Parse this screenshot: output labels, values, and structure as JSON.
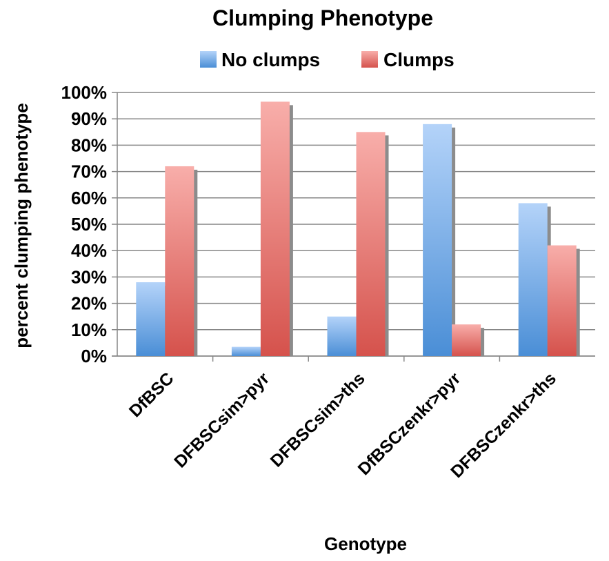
{
  "chart_data": {
    "type": "bar",
    "title": "Clumping Phenotype",
    "xlabel": "Genotype",
    "ylabel": "percent clumping phenotype",
    "ylim": [
      0,
      1
    ],
    "yticks": [
      "0%",
      "10%",
      "20%",
      "30%",
      "40%",
      "50%",
      "60%",
      "70%",
      "80%",
      "90%",
      "100%"
    ],
    "categories": [
      "DfBSC",
      "DFBSCsim>pyr",
      "DFBSCsim>ths",
      "DfBSCzenkr>pyr",
      "DFBSCzenkr>ths"
    ],
    "series": [
      {
        "name": "No clumps",
        "values": [
          0.28,
          0.035,
          0.15,
          0.88,
          0.58
        ]
      },
      {
        "name": "Clumps",
        "values": [
          0.72,
          0.965,
          0.85,
          0.12,
          0.42
        ]
      }
    ],
    "grid": true,
    "legend": "top"
  },
  "colors": {
    "no_clumps_light": "#b4d3f9",
    "no_clumps_dark": "#4a8ed6",
    "clumps_light": "#f8aeaa",
    "clumps_dark": "#d5524c",
    "shadow": "#8c8c8c",
    "grid": "#868686"
  }
}
